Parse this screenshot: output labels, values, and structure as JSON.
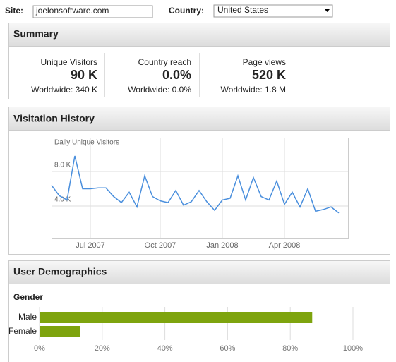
{
  "site": {
    "label": "Site:",
    "value": "joelonsoftware.com"
  },
  "country": {
    "label": "Country:",
    "value": "United States"
  },
  "summary": {
    "title": "Summary",
    "metrics": [
      {
        "label": "Unique Visitors",
        "value": "90 K",
        "worldwide": "Worldwide: 340 K"
      },
      {
        "label": "Country reach",
        "value": "0.0%",
        "worldwide": "Worldwide: 0.0%"
      },
      {
        "label": "Page views",
        "value": "520 K",
        "worldwide": "Worldwide: 1.8 M"
      }
    ]
  },
  "visitation_history": {
    "title": "Visitation History"
  },
  "user_demographics": {
    "title": "User Demographics"
  },
  "chart_data": [
    {
      "type": "line",
      "ylabel": "Daily Unique Visitors",
      "color": "#4a8fdd",
      "categories": [
        null,
        null,
        null,
        null,
        null,
        "Jul 2007",
        null,
        null,
        null,
        null,
        null,
        null,
        null,
        null,
        "Oct 2007",
        null,
        null,
        null,
        null,
        null,
        null,
        null,
        "Jan 2008",
        null,
        null,
        null,
        null,
        null,
        null,
        null,
        "Apr 2008",
        null,
        null,
        null,
        null,
        null,
        null,
        null
      ],
      "values": [
        6400,
        5200,
        4700,
        9800,
        6000,
        6000,
        6100,
        6100,
        5100,
        4400,
        5600,
        3900,
        7500,
        5100,
        4600,
        4400,
        5800,
        4100,
        4500,
        5800,
        4500,
        3500,
        4700,
        4900,
        7500,
        4700,
        7300,
        5100,
        4700,
        6900,
        4200,
        5600,
        3900,
        6000,
        3400,
        3600,
        3900,
        3200
      ],
      "ylim": [
        0,
        12000
      ],
      "yticks": [
        {
          "value": 4000,
          "label": "4.0 K"
        },
        {
          "value": 8000,
          "label": "8.0 K"
        }
      ],
      "grid": true
    },
    {
      "type": "bar",
      "orientation": "horizontal",
      "title": "Gender",
      "color": "#7ea40e",
      "categories": [
        "Male",
        "Female"
      ],
      "values": [
        87,
        13
      ],
      "xlim": [
        0,
        100
      ],
      "xticks": [
        {
          "value": 0,
          "label": "0%"
        },
        {
          "value": 20,
          "label": "20%"
        },
        {
          "value": 40,
          "label": "40%"
        },
        {
          "value": 60,
          "label": "60%"
        },
        {
          "value": 80,
          "label": "80%"
        },
        {
          "value": 100,
          "label": "100%"
        }
      ],
      "grid": true
    }
  ]
}
